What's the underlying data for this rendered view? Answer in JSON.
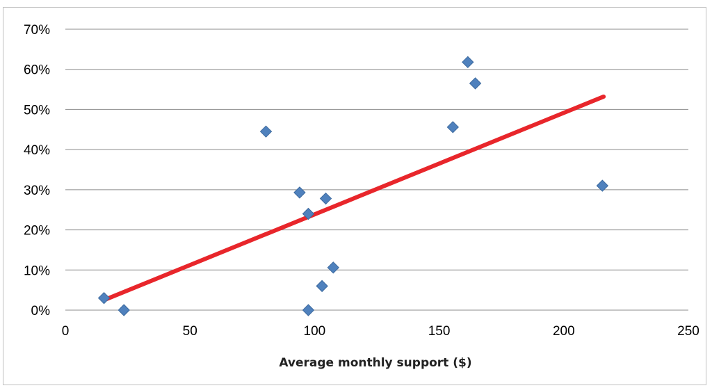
{
  "chart_data": {
    "type": "scatter",
    "title": "",
    "xlabel": "Average monthly support ($)",
    "ylabel": "",
    "xlim": [
      0,
      250
    ],
    "ylim": [
      0,
      0.7
    ],
    "x_ticks": [
      0,
      50,
      100,
      150,
      200,
      250
    ],
    "x_tick_labels": [
      "0",
      "50",
      "100",
      "150",
      "200",
      "250"
    ],
    "y_ticks": [
      0,
      0.1,
      0.2,
      0.3,
      0.4,
      0.5,
      0.6,
      0.7
    ],
    "y_tick_labels": [
      "0%",
      "10%",
      "20%",
      "30%",
      "40%",
      "50%",
      "60%",
      "70%"
    ],
    "grid": "horizontal",
    "legend": "none",
    "series": [
      {
        "type": "scatter",
        "marker": "diamond",
        "color": "#4f81bd",
        "points": [
          {
            "x": 15.5,
            "y": 0.03
          },
          {
            "x": 23.5,
            "y": 0.0
          },
          {
            "x": 80.5,
            "y": 0.445
          },
          {
            "x": 94,
            "y": 0.293
          },
          {
            "x": 97.5,
            "y": 0.24
          },
          {
            "x": 97.5,
            "y": 0.0
          },
          {
            "x": 103,
            "y": 0.06
          },
          {
            "x": 104.5,
            "y": 0.278
          },
          {
            "x": 107.5,
            "y": 0.106
          },
          {
            "x": 155.5,
            "y": 0.456
          },
          {
            "x": 161.5,
            "y": 0.618
          },
          {
            "x": 164.5,
            "y": 0.565
          },
          {
            "x": 215.5,
            "y": 0.31
          }
        ]
      },
      {
        "type": "trendline",
        "kind": "linear",
        "color": "#e8262b",
        "points": [
          {
            "x": 15.5,
            "y": 0.025
          },
          {
            "x": 216,
            "y": 0.532
          }
        ]
      }
    ]
  }
}
